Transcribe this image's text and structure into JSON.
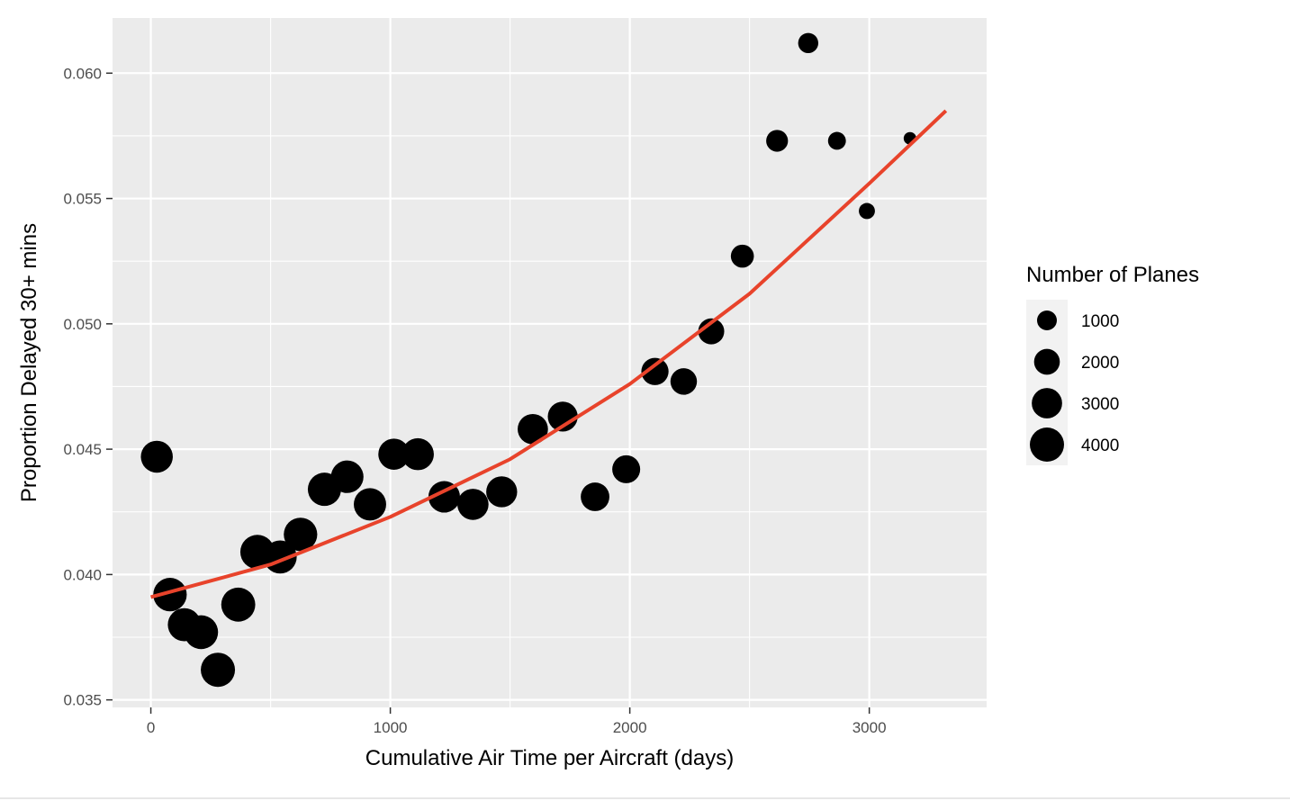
{
  "chart_data": {
    "type": "scatter",
    "title": "",
    "xlabel": "Cumulative Air Time per Aircraft (days)",
    "ylabel": "Proportion Delayed 30+ mins",
    "xlim": [
      -160,
      3490
    ],
    "ylim": [
      0.0347,
      0.0622
    ],
    "x_ticks": [
      0,
      1000,
      2000,
      3000
    ],
    "x_tick_labels": [
      "0",
      "1000",
      "2000",
      "3000"
    ],
    "x_minor_ticks": [
      500,
      1500,
      2500
    ],
    "y_ticks": [
      0.035,
      0.04,
      0.045,
      0.05,
      0.055,
      0.06
    ],
    "y_tick_labels": [
      "0.035",
      "0.040",
      "0.045",
      "0.050",
      "0.055",
      "0.060"
    ],
    "y_minor_ticks": [
      0.0375,
      0.0425,
      0.0475,
      0.0525,
      0.0575
    ],
    "grid": true,
    "legend": {
      "title": "Number of Planes",
      "placement": "right",
      "entries": [
        {
          "label": "1000",
          "value": 1000
        },
        {
          "label": "2000",
          "value": 2000
        },
        {
          "label": "3000",
          "value": 3000
        },
        {
          "label": "4000",
          "value": 4000
        }
      ]
    },
    "colors": {
      "panel": "#ebebeb",
      "grid": "#ffffff",
      "points": "#000000",
      "fit_line": "#e8432b",
      "legend_key": "#f2f2f2"
    },
    "series": [
      {
        "x": [
          25,
          80,
          140,
          210,
          280,
          365,
          445,
          540,
          625,
          725,
          820,
          915,
          1015,
          1115,
          1225,
          1345,
          1465,
          1595,
          1720,
          1855,
          1985,
          2105,
          2225,
          2340,
          2470,
          2615,
          2745,
          2865,
          2990,
          3170
        ],
        "y": [
          0.0447,
          0.0392,
          0.038,
          0.0377,
          0.0362,
          0.0388,
          0.0409,
          0.0407,
          0.0416,
          0.0434,
          0.0439,
          0.0428,
          0.0448,
          0.0448,
          0.0431,
          0.0428,
          0.0433,
          0.0458,
          0.0463,
          0.0431,
          0.0442,
          0.0481,
          0.0477,
          0.0497,
          0.0527,
          0.0573,
          0.0612,
          0.0573,
          0.0545,
          0.0574
        ],
        "sizes": [
          3400,
          3800,
          3700,
          3900,
          4000,
          3950,
          4000,
          3700,
          3800,
          3750,
          3550,
          3500,
          3200,
          3400,
          3300,
          3200,
          3150,
          3000,
          2900,
          2600,
          2450,
          2300,
          2150,
          2050,
          1500,
          1300,
          1050,
          750,
          550,
          250
        ]
      }
    ],
    "fit_line": {
      "x": [
        0,
        500,
        1000,
        1500,
        2000,
        2500,
        3000,
        3320
      ],
      "y": [
        0.0391,
        0.0404,
        0.0423,
        0.0446,
        0.0476,
        0.0512,
        0.0556,
        0.0585
      ]
    }
  }
}
